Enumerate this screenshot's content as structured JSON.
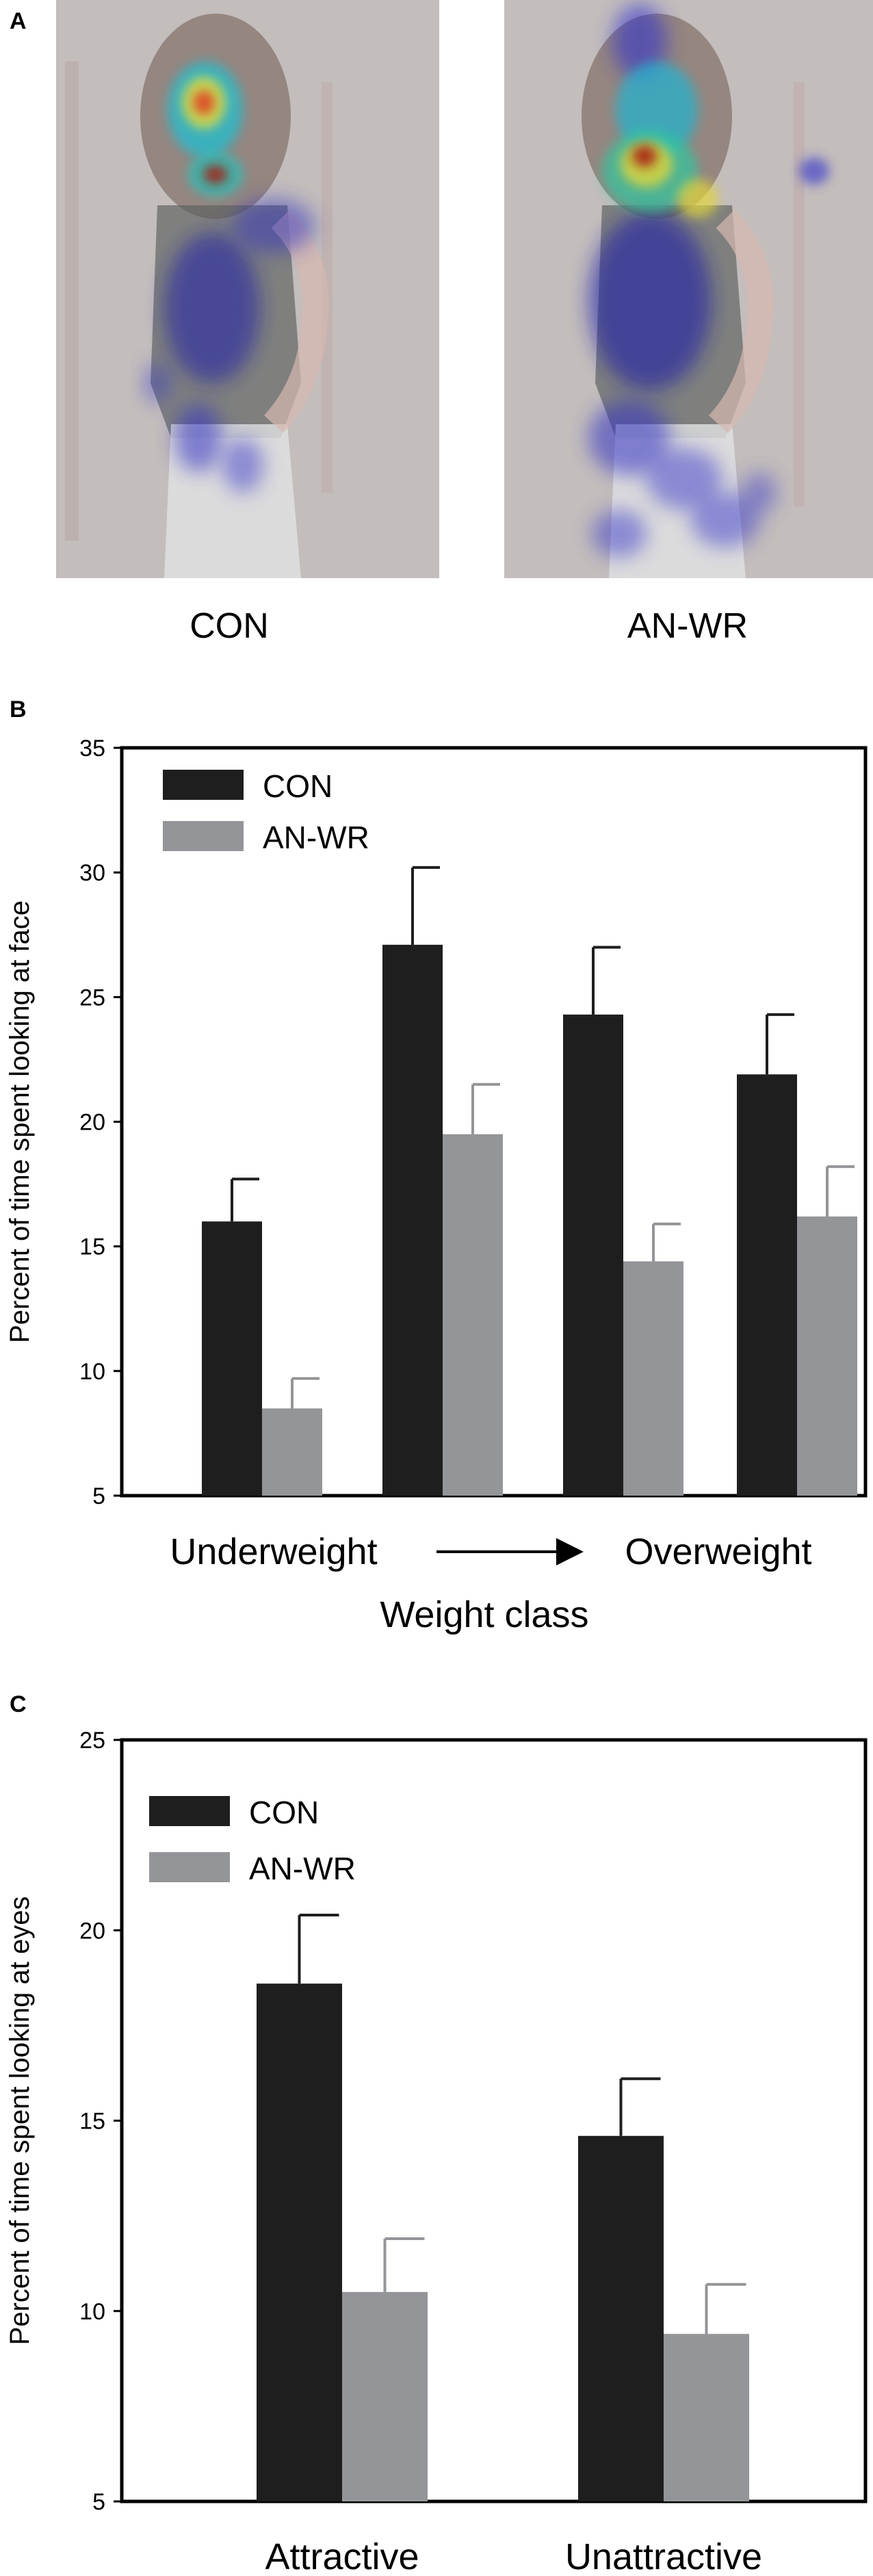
{
  "panel_a": {
    "letter": "A",
    "captions": [
      "CON",
      "AN-WR"
    ]
  },
  "chart_data": [
    {
      "type": "bar",
      "panel": "B",
      "ylabel": "Percent of time spent looking at face",
      "xlabel": "Weight class",
      "category_labels": [
        "Underweight",
        "Overweight"
      ],
      "ylim": [
        5,
        35
      ],
      "yticks": [
        5,
        10,
        15,
        20,
        25,
        30,
        35
      ],
      "groups": 4,
      "series": [
        {
          "name": "CON",
          "color": "#1e1e1e",
          "values": [
            16.0,
            27.1,
            24.3,
            21.9
          ],
          "errors": [
            1.7,
            3.1,
            2.7,
            2.4
          ]
        },
        {
          "name": "AN-WR",
          "color": "#939598",
          "values": [
            8.5,
            19.5,
            14.4,
            16.2
          ],
          "errors": [
            1.2,
            2.0,
            1.5,
            2.0
          ]
        }
      ],
      "legend": "top-left"
    },
    {
      "type": "bar",
      "panel": "C",
      "ylabel": "Percent of time spent looking at eyes",
      "xlabel": "",
      "categories": [
        "Attractive",
        "Unattractive"
      ],
      "ylim": [
        5,
        25
      ],
      "yticks": [
        5,
        10,
        15,
        20,
        25
      ],
      "series": [
        {
          "name": "CON",
          "color": "#1e1e1e",
          "values": [
            18.6,
            14.6
          ],
          "errors": [
            1.8,
            1.5
          ]
        },
        {
          "name": "AN-WR",
          "color": "#939598",
          "values": [
            10.5,
            9.4
          ],
          "errors": [
            1.4,
            1.3
          ]
        }
      ],
      "legend": "top-left"
    }
  ]
}
